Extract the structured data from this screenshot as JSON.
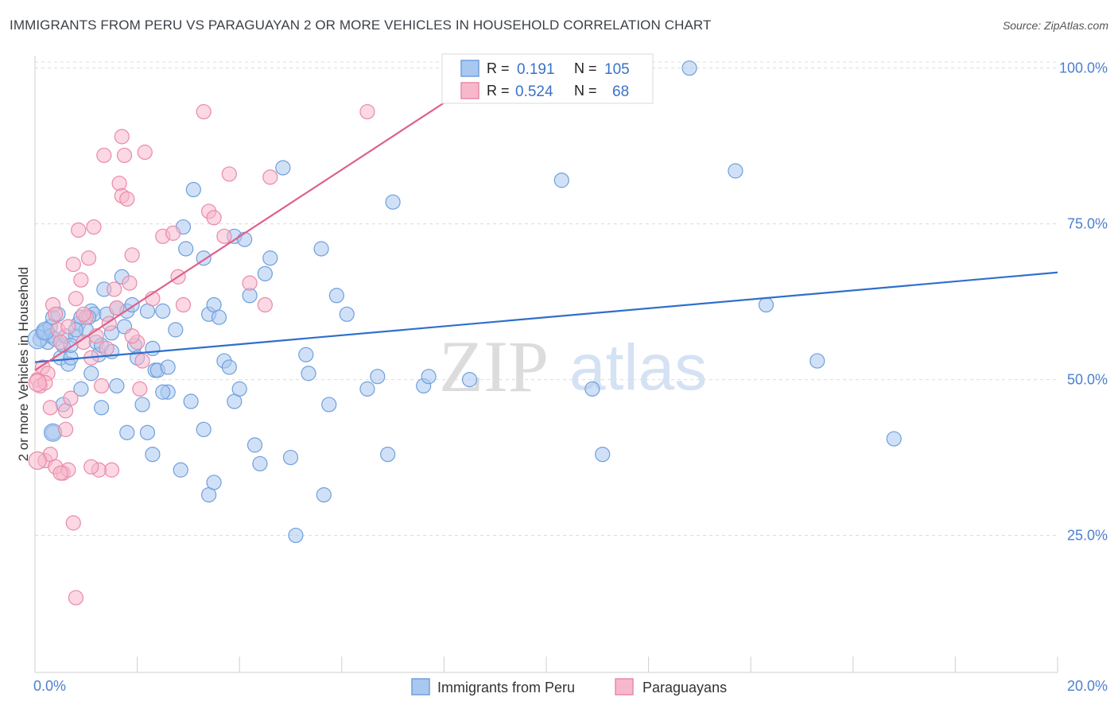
{
  "title": "IMMIGRANTS FROM PERU VS PARAGUAYAN 2 OR MORE VEHICLES IN HOUSEHOLD CORRELATION CHART",
  "source": "Source: ZipAtlas.com",
  "watermark": {
    "zip": "ZIP",
    "atlas": "atlas"
  },
  "colors": {
    "peru_fill": "#a9c8f0",
    "peru_stroke": "#6f9fdc",
    "peru_line": "#2f6fcc",
    "para_fill": "#f7b8cc",
    "para_stroke": "#e98aa8",
    "para_line": "#e0608a",
    "grid": "#dcdcdc",
    "axis_text": "#4a7fd0"
  },
  "stats_box": {
    "rows": [
      {
        "r_label": "R =",
        "r_value": "0.191",
        "n_label": "N =",
        "n_value": "105"
      },
      {
        "r_label": "R =",
        "r_value": "0.524",
        "n_label": "N =",
        "n_value": "68"
      }
    ]
  },
  "chart_data": {
    "type": "scatter",
    "ylabel": "2 or more Vehicles in Household",
    "xlim": [
      0,
      20
    ],
    "ylim": [
      3,
      102
    ],
    "x_tick_labels": [
      {
        "v": 0,
        "label": "0.0%"
      },
      {
        "v": 20,
        "label": "20.0%"
      }
    ],
    "y_tick_labels": [
      {
        "v": 100,
        "label": "100.0%"
      },
      {
        "v": 75,
        "label": "75.0%"
      },
      {
        "v": 50,
        "label": "50.0%"
      },
      {
        "v": 25,
        "label": "25.0%"
      }
    ],
    "grid": true,
    "legend_position": "bottom",
    "series": [
      {
        "name": "Immigrants from Peru",
        "trend": {
          "x": [
            0,
            20
          ],
          "y": [
            52.8,
            67.2
          ]
        },
        "points": [
          [
            0.1,
            56.5
          ],
          [
            0.15,
            57.5
          ],
          [
            0.2,
            57.8
          ],
          [
            0.25,
            56
          ],
          [
            0.3,
            58.5
          ],
          [
            0.35,
            60
          ],
          [
            0.3,
            57
          ],
          [
            0.4,
            56.5
          ],
          [
            0.5,
            53.5
          ],
          [
            0.55,
            55.5
          ],
          [
            0.6,
            57
          ],
          [
            0.65,
            52.5
          ],
          [
            0.7,
            53.5
          ],
          [
            0.8,
            57
          ],
          [
            0.85,
            59
          ],
          [
            0.9,
            60
          ],
          [
            1.0,
            58
          ],
          [
            1.1,
            61
          ],
          [
            1.15,
            60.5
          ],
          [
            1.2,
            56
          ],
          [
            1.25,
            54
          ],
          [
            1.3,
            55.5
          ],
          [
            1.4,
            60.5
          ],
          [
            1.5,
            54.5
          ],
          [
            1.6,
            61.5
          ],
          [
            1.7,
            66.5
          ],
          [
            1.75,
            58.5
          ],
          [
            1.8,
            61
          ],
          [
            1.9,
            62
          ],
          [
            1.95,
            55.5
          ],
          [
            2.0,
            53.5
          ],
          [
            2.2,
            61
          ],
          [
            2.3,
            55
          ],
          [
            2.35,
            51.5
          ],
          [
            2.4,
            51.5
          ],
          [
            2.5,
            61
          ],
          [
            2.6,
            52
          ],
          [
            2.75,
            58
          ],
          [
            2.9,
            74.5
          ],
          [
            2.95,
            71
          ],
          [
            3.1,
            80.5
          ],
          [
            3.3,
            69.5
          ],
          [
            3.4,
            60.5
          ],
          [
            3.5,
            62
          ],
          [
            3.6,
            60
          ],
          [
            3.7,
            53
          ],
          [
            3.8,
            52
          ],
          [
            3.9,
            73
          ],
          [
            4.1,
            72.5
          ],
          [
            4.2,
            63.5
          ],
          [
            4.3,
            39.5
          ],
          [
            4.4,
            36.5
          ],
          [
            4.5,
            67
          ],
          [
            4.6,
            69.5
          ],
          [
            4.85,
            84
          ],
          [
            5.0,
            37.5
          ],
          [
            5.1,
            25
          ],
          [
            5.3,
            54
          ],
          [
            5.35,
            51
          ],
          [
            5.6,
            71
          ],
          [
            5.65,
            31.5
          ],
          [
            5.75,
            46
          ],
          [
            5.9,
            63.5
          ],
          [
            6.1,
            60.5
          ],
          [
            6.5,
            48.5
          ],
          [
            6.7,
            50.5
          ],
          [
            6.9,
            38
          ],
          [
            7.0,
            78.5
          ],
          [
            7.6,
            49
          ],
          [
            7.7,
            50.5
          ],
          [
            8.5,
            50
          ],
          [
            9.3,
            100
          ],
          [
            10.3,
            82
          ],
          [
            10.9,
            48.5
          ],
          [
            11.1,
            38
          ],
          [
            12.8,
            100
          ],
          [
            13.7,
            83.5
          ],
          [
            14.3,
            62
          ],
          [
            15.3,
            53
          ],
          [
            16.8,
            40.5
          ],
          [
            0.35,
            41.5
          ],
          [
            0.55,
            46
          ],
          [
            0.9,
            48.5
          ],
          [
            1.1,
            51
          ],
          [
            1.3,
            45.5
          ],
          [
            1.6,
            49
          ],
          [
            1.8,
            41.5
          ],
          [
            2.1,
            46
          ],
          [
            2.2,
            41.5
          ],
          [
            2.3,
            38
          ],
          [
            2.6,
            48
          ],
          [
            2.85,
            35.5
          ],
          [
            3.05,
            46.5
          ],
          [
            3.3,
            42
          ],
          [
            3.4,
            31.5
          ],
          [
            3.5,
            33.5
          ],
          [
            3.9,
            46.5
          ],
          [
            4.0,
            48.5
          ],
          [
            0.8,
            58
          ],
          [
            1.05,
            60
          ],
          [
            0.45,
            60.5
          ],
          [
            0.7,
            55.5
          ],
          [
            1.5,
            57.5
          ],
          [
            2.5,
            48
          ],
          [
            1.35,
            64.5
          ]
        ]
      },
      {
        "name": "Paraguayans",
        "trend": {
          "x": [
            0,
            8.2
          ],
          "y": [
            51.5,
            95.5
          ]
        },
        "points": [
          [
            0.05,
            50
          ],
          [
            0.1,
            49
          ],
          [
            0.15,
            52
          ],
          [
            0.2,
            37
          ],
          [
            0.25,
            51
          ],
          [
            0.3,
            45.5
          ],
          [
            0.35,
            62
          ],
          [
            0.4,
            60.5
          ],
          [
            0.45,
            58
          ],
          [
            0.5,
            56
          ],
          [
            0.55,
            35
          ],
          [
            0.6,
            45
          ],
          [
            0.65,
            35.5
          ],
          [
            0.7,
            47
          ],
          [
            0.75,
            68.5
          ],
          [
            0.8,
            63
          ],
          [
            0.85,
            74
          ],
          [
            0.9,
            66
          ],
          [
            0.95,
            56
          ],
          [
            1.0,
            60
          ],
          [
            1.05,
            69.5
          ],
          [
            1.1,
            53.5
          ],
          [
            1.15,
            74.5
          ],
          [
            1.2,
            57
          ],
          [
            1.3,
            49
          ],
          [
            1.35,
            86
          ],
          [
            1.4,
            55
          ],
          [
            1.5,
            35.5
          ],
          [
            1.55,
            64.5
          ],
          [
            1.6,
            61.5
          ],
          [
            1.65,
            81.5
          ],
          [
            1.7,
            79.5
          ],
          [
            1.75,
            86
          ],
          [
            1.8,
            79
          ],
          [
            1.85,
            65.5
          ],
          [
            1.9,
            70
          ],
          [
            2.0,
            56
          ],
          [
            2.1,
            53
          ],
          [
            2.15,
            86.5
          ],
          [
            2.3,
            63
          ],
          [
            2.5,
            73
          ],
          [
            2.7,
            73.5
          ],
          [
            2.8,
            66.5
          ],
          [
            2.9,
            62
          ],
          [
            3.3,
            93
          ],
          [
            3.4,
            77
          ],
          [
            3.5,
            76
          ],
          [
            3.7,
            73
          ],
          [
            3.8,
            83
          ],
          [
            4.2,
            65.5
          ],
          [
            4.5,
            62
          ],
          [
            4.6,
            82.5
          ],
          [
            6.5,
            93
          ],
          [
            0.75,
            27
          ],
          [
            0.8,
            15
          ],
          [
            0.3,
            38
          ],
          [
            0.4,
            36
          ],
          [
            0.5,
            35
          ],
          [
            0.6,
            42
          ],
          [
            1.25,
            35.5
          ],
          [
            1.7,
            89
          ],
          [
            1.45,
            59
          ],
          [
            0.95,
            60.5
          ],
          [
            0.65,
            58.5
          ],
          [
            1.1,
            36
          ],
          [
            1.9,
            57
          ],
          [
            2.05,
            48.5
          ],
          [
            0.2,
            49.5
          ]
        ]
      }
    ]
  }
}
